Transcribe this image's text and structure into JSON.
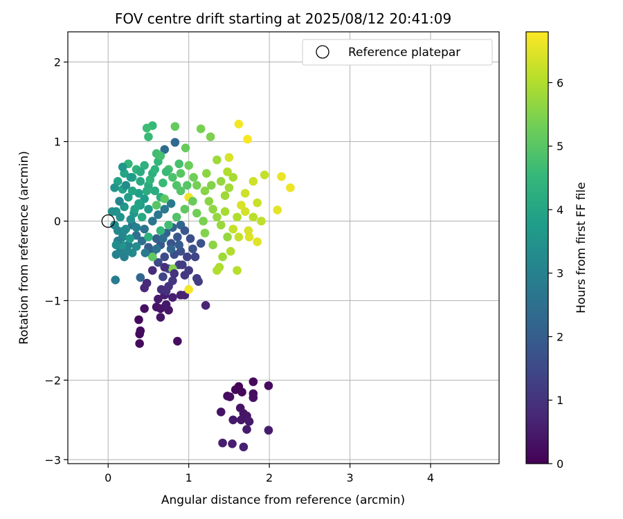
{
  "chart_data": {
    "type": "scatter",
    "title": "FOV centre drift starting at 2025/08/12 20:41:09",
    "xlabel": "Angular distance from reference (arcmin)",
    "ylabel": "Rotation from reference (arcmin)",
    "xlim": [
      -0.5,
      4.85
    ],
    "ylim": [
      -3.05,
      2.38
    ],
    "x_ticks": [
      0,
      1,
      2,
      3,
      4
    ],
    "y_ticks": [
      -3,
      -2,
      -1,
      0,
      1,
      2
    ],
    "grid": true,
    "legend": {
      "placement": "top-right",
      "entries": [
        "Reference platepar"
      ]
    },
    "reference_point": {
      "x": 0.0,
      "y": 0.0
    },
    "colorbar": {
      "label": "Hours from first FF file",
      "range": [
        0,
        6.8
      ],
      "ticks": [
        0,
        1,
        2,
        3,
        4,
        5,
        6
      ],
      "colormap": "viridis",
      "stops": [
        "#440154",
        "#482878",
        "#3e4a89",
        "#31688e",
        "#26828e",
        "#1f9e89",
        "#35b779",
        "#6ece58",
        "#b5de2b",
        "#fde725"
      ]
    },
    "points": [
      {
        "x": 1.62,
        "y": -2.08,
        "t": 0.05
      },
      {
        "x": 1.58,
        "y": -2.12,
        "t": 0.1
      },
      {
        "x": 1.66,
        "y": -2.15,
        "t": 0.12
      },
      {
        "x": 1.8,
        "y": -2.02,
        "t": 0.15
      },
      {
        "x": 1.99,
        "y": -2.07,
        "t": 0.2
      },
      {
        "x": 1.48,
        "y": -2.2,
        "t": 0.22
      },
      {
        "x": 1.51,
        "y": -2.21,
        "t": 0.25
      },
      {
        "x": 1.8,
        "y": -2.17,
        "t": 0.28
      },
      {
        "x": 1.8,
        "y": -2.22,
        "t": 0.3
      },
      {
        "x": 1.64,
        "y": -2.35,
        "t": 0.32
      },
      {
        "x": 1.4,
        "y": -2.4,
        "t": 0.35
      },
      {
        "x": 1.68,
        "y": -2.42,
        "t": 0.38
      },
      {
        "x": 1.72,
        "y": -2.45,
        "t": 0.4
      },
      {
        "x": 1.65,
        "y": -2.5,
        "t": 0.42
      },
      {
        "x": 1.55,
        "y": -2.5,
        "t": 0.45
      },
      {
        "x": 1.75,
        "y": -2.52,
        "t": 0.47
      },
      {
        "x": 1.72,
        "y": -2.62,
        "t": 0.5
      },
      {
        "x": 1.99,
        "y": -2.63,
        "t": 0.52
      },
      {
        "x": 1.42,
        "y": -2.79,
        "t": 0.55
      },
      {
        "x": 1.54,
        "y": -2.8,
        "t": 0.57
      },
      {
        "x": 1.68,
        "y": -2.84,
        "t": 0.6
      },
      {
        "x": 0.38,
        "y": -1.24,
        "t": 0.15
      },
      {
        "x": 0.39,
        "y": -1.42,
        "t": 0.18
      },
      {
        "x": 0.4,
        "y": -1.38,
        "t": 0.2
      },
      {
        "x": 0.39,
        "y": -1.54,
        "t": 0.22
      },
      {
        "x": 0.86,
        "y": -1.51,
        "t": 0.25
      },
      {
        "x": 0.45,
        "y": -1.1,
        "t": 0.3
      },
      {
        "x": 0.6,
        "y": -1.08,
        "t": 0.35
      },
      {
        "x": 0.65,
        "y": -1.1,
        "t": 0.38
      },
      {
        "x": 0.65,
        "y": -1.21,
        "t": 0.4
      },
      {
        "x": 0.75,
        "y": -1.12,
        "t": 0.42
      },
      {
        "x": 0.72,
        "y": -1.05,
        "t": 0.45
      },
      {
        "x": 0.62,
        "y": -0.98,
        "t": 0.5
      },
      {
        "x": 0.7,
        "y": -0.93,
        "t": 0.55
      },
      {
        "x": 0.8,
        "y": -0.96,
        "t": 0.6
      },
      {
        "x": 0.9,
        "y": -0.93,
        "t": 0.62
      },
      {
        "x": 0.95,
        "y": -0.93,
        "t": 0.65
      },
      {
        "x": 1.21,
        "y": -1.06,
        "t": 0.7
      },
      {
        "x": 0.45,
        "y": -0.84,
        "t": 0.75
      },
      {
        "x": 0.48,
        "y": -0.78,
        "t": 0.8
      },
      {
        "x": 0.55,
        "y": -0.62,
        "t": 0.85
      },
      {
        "x": 0.66,
        "y": -0.86,
        "t": 0.9
      },
      {
        "x": 0.72,
        "y": -0.88,
        "t": 0.95
      },
      {
        "x": 0.75,
        "y": -0.82,
        "t": 1.0
      },
      {
        "x": 0.8,
        "y": -0.75,
        "t": 1.05
      },
      {
        "x": 0.95,
        "y": -0.68,
        "t": 1.1
      },
      {
        "x": 1.0,
        "y": -0.62,
        "t": 1.15
      },
      {
        "x": 1.1,
        "y": -0.72,
        "t": 1.2
      },
      {
        "x": 1.12,
        "y": -0.76,
        "t": 1.25
      },
      {
        "x": 0.88,
        "y": -0.55,
        "t": 1.3
      },
      {
        "x": 0.98,
        "y": -0.45,
        "t": 1.35
      },
      {
        "x": 0.68,
        "y": -0.7,
        "t": 1.4
      },
      {
        "x": 0.75,
        "y": -0.6,
        "t": 1.45
      },
      {
        "x": 0.62,
        "y": -0.52,
        "t": 1.5
      },
      {
        "x": 0.7,
        "y": -0.45,
        "t": 1.55
      },
      {
        "x": 0.82,
        "y": -0.42,
        "t": 1.6
      },
      {
        "x": 0.9,
        "y": -0.38,
        "t": 1.65
      },
      {
        "x": 1.05,
        "y": -0.35,
        "t": 1.7
      },
      {
        "x": 1.15,
        "y": -0.28,
        "t": 1.75
      },
      {
        "x": 0.78,
        "y": -0.28,
        "t": 1.8
      },
      {
        "x": 0.86,
        "y": -0.2,
        "t": 1.85
      },
      {
        "x": 0.65,
        "y": -0.3,
        "t": 1.9
      },
      {
        "x": 0.55,
        "y": -0.4,
        "t": 1.95
      },
      {
        "x": 0.5,
        "y": -0.33,
        "t": 2.0
      },
      {
        "x": 0.6,
        "y": -0.22,
        "t": 2.05
      },
      {
        "x": 0.72,
        "y": -0.15,
        "t": 2.1
      },
      {
        "x": 0.8,
        "y": -0.08,
        "t": 2.15
      },
      {
        "x": 0.9,
        "y": -0.05,
        "t": 2.2
      },
      {
        "x": 0.4,
        "y": -0.71,
        "t": 2.25
      },
      {
        "x": 0.83,
        "y": 0.99,
        "t": 2.3
      },
      {
        "x": 0.7,
        "y": 0.9,
        "t": 2.4
      },
      {
        "x": 0.42,
        "y": -0.25,
        "t": 2.45
      },
      {
        "x": 0.35,
        "y": -0.18,
        "t": 2.5
      },
      {
        "x": 0.45,
        "y": -0.1,
        "t": 2.55
      },
      {
        "x": 0.3,
        "y": -0.05,
        "t": 2.6
      },
      {
        "x": 0.55,
        "y": 0.0,
        "t": 2.65
      },
      {
        "x": 0.62,
        "y": 0.08,
        "t": 2.7
      },
      {
        "x": 0.7,
        "y": 0.15,
        "t": 2.75
      },
      {
        "x": 0.78,
        "y": 0.22,
        "t": 2.8
      },
      {
        "x": 0.09,
        "y": -0.74,
        "t": 2.85
      },
      {
        "x": 0.2,
        "y": -0.45,
        "t": 2.9
      },
      {
        "x": 0.15,
        "y": -0.38,
        "t": 2.95
      },
      {
        "x": 0.25,
        "y": -0.3,
        "t": 3.0
      },
      {
        "x": 0.1,
        "y": -0.42,
        "t": 3.05
      },
      {
        "x": 0.18,
        "y": -0.2,
        "t": 3.1
      },
      {
        "x": 0.12,
        "y": -0.12,
        "t": 3.15
      },
      {
        "x": 0.08,
        "y": -0.05,
        "t": 3.2
      },
      {
        "x": 0.3,
        "y": -0.4,
        "t": 3.25
      },
      {
        "x": 0.35,
        "y": -0.32,
        "t": 3.3
      },
      {
        "x": 0.22,
        "y": -0.1,
        "t": 3.35
      },
      {
        "x": 0.28,
        "y": 0.02,
        "t": 3.4
      },
      {
        "x": 0.15,
        "y": 0.05,
        "t": 3.45
      },
      {
        "x": 0.1,
        "y": 0.12,
        "t": 3.5
      },
      {
        "x": 0.2,
        "y": 0.18,
        "t": 3.55
      },
      {
        "x": 0.32,
        "y": 0.1,
        "t": 3.6
      },
      {
        "x": 0.4,
        "y": 0.2,
        "t": 3.65
      },
      {
        "x": 0.5,
        "y": 0.15,
        "t": 3.7
      },
      {
        "x": 0.45,
        "y": 0.28,
        "t": 3.75
      },
      {
        "x": 0.38,
        "y": 0.35,
        "t": 3.8
      },
      {
        "x": 0.25,
        "y": 0.3,
        "t": 3.85
      },
      {
        "x": 0.18,
        "y": 0.4,
        "t": 3.9
      },
      {
        "x": 0.12,
        "y": 0.5,
        "t": 3.95
      },
      {
        "x": 0.2,
        "y": 0.6,
        "t": 4.0
      },
      {
        "x": 0.3,
        "y": 0.55,
        "t": 4.05
      },
      {
        "x": 0.4,
        "y": 0.5,
        "t": 4.1
      },
      {
        "x": 0.5,
        "y": 0.45,
        "t": 4.15
      },
      {
        "x": 0.58,
        "y": 0.38,
        "t": 4.2
      },
      {
        "x": 0.65,
        "y": 0.3,
        "t": 4.25
      },
      {
        "x": 0.55,
        "y": 0.6,
        "t": 4.3
      },
      {
        "x": 0.45,
        "y": 0.7,
        "t": 4.35
      },
      {
        "x": 0.35,
        "y": 0.65,
        "t": 4.4
      },
      {
        "x": 0.25,
        "y": 0.72,
        "t": 4.45
      },
      {
        "x": 0.62,
        "y": 0.75,
        "t": 4.5
      },
      {
        "x": 0.55,
        "y": 1.2,
        "t": 4.55
      },
      {
        "x": 0.5,
        "y": 1.06,
        "t": 4.6
      },
      {
        "x": 0.48,
        "y": 1.17,
        "t": 4.65
      },
      {
        "x": 0.6,
        "y": 0.85,
        "t": 4.7
      },
      {
        "x": 0.65,
        "y": 0.82,
        "t": 4.75
      },
      {
        "x": 0.75,
        "y": 0.65,
        "t": 4.8
      },
      {
        "x": 0.8,
        "y": 0.55,
        "t": 4.85
      },
      {
        "x": 0.85,
        "y": 0.45,
        "t": 4.9
      },
      {
        "x": 0.9,
        "y": 0.38,
        "t": 4.95
      },
      {
        "x": 0.6,
        "y": 0.2,
        "t": 5.0
      },
      {
        "x": 0.7,
        "y": 0.28,
        "t": 5.05
      },
      {
        "x": 0.55,
        "y": -0.45,
        "t": 5.1
      },
      {
        "x": 0.83,
        "y": 1.19,
        "t": 5.15
      },
      {
        "x": 0.96,
        "y": 0.92,
        "t": 5.2
      },
      {
        "x": 1.0,
        "y": 0.7,
        "t": 5.25
      },
      {
        "x": 1.06,
        "y": 0.55,
        "t": 5.3
      },
      {
        "x": 1.1,
        "y": 0.45,
        "t": 5.35
      },
      {
        "x": 1.15,
        "y": 1.16,
        "t": 5.4
      },
      {
        "x": 1.27,
        "y": 1.06,
        "t": 5.45
      },
      {
        "x": 0.8,
        "y": -0.6,
        "t": 5.5
      },
      {
        "x": 1.2,
        "y": 0.38,
        "t": 5.55
      },
      {
        "x": 1.25,
        "y": 0.25,
        "t": 5.6
      },
      {
        "x": 1.3,
        "y": 0.15,
        "t": 5.65
      },
      {
        "x": 1.35,
        "y": 0.05,
        "t": 5.7
      },
      {
        "x": 1.4,
        "y": -0.05,
        "t": 5.75
      },
      {
        "x": 1.45,
        "y": 0.32,
        "t": 5.8
      },
      {
        "x": 1.5,
        "y": 0.42,
        "t": 5.85
      },
      {
        "x": 1.55,
        "y": 0.55,
        "t": 5.9
      },
      {
        "x": 1.38,
        "y": -0.58,
        "t": 5.95
      },
      {
        "x": 1.35,
        "y": -0.62,
        "t": 6.0
      },
      {
        "x": 1.6,
        "y": -0.62,
        "t": 6.05
      },
      {
        "x": 1.8,
        "y": 0.05,
        "t": 6.1
      },
      {
        "x": 1.9,
        "y": 0.0,
        "t": 6.15
      },
      {
        "x": 1.94,
        "y": 0.58,
        "t": 6.2
      },
      {
        "x": 1.85,
        "y": 0.23,
        "t": 6.25
      },
      {
        "x": 1.8,
        "y": 0.5,
        "t": 6.3
      },
      {
        "x": 1.7,
        "y": 0.12,
        "t": 6.35
      },
      {
        "x": 1.65,
        "y": 0.2,
        "t": 6.4
      },
      {
        "x": 1.75,
        "y": -0.2,
        "t": 6.45
      },
      {
        "x": 1.85,
        "y": -0.26,
        "t": 6.5
      },
      {
        "x": 2.1,
        "y": 0.14,
        "t": 6.55
      },
      {
        "x": 2.15,
        "y": 0.56,
        "t": 6.6
      },
      {
        "x": 2.26,
        "y": 0.42,
        "t": 6.65
      },
      {
        "x": 1.62,
        "y": 1.22,
        "t": 6.7
      },
      {
        "x": 1.73,
        "y": 1.03,
        "t": 6.75
      },
      {
        "x": 1.0,
        "y": -0.86,
        "t": 6.7
      },
      {
        "x": 1.0,
        "y": 0.3,
        "t": 6.6
      },
      {
        "x": 1.55,
        "y": -0.1,
        "t": 6.2
      },
      {
        "x": 1.6,
        "y": 0.05,
        "t": 6.0
      },
      {
        "x": 1.45,
        "y": 0.12,
        "t": 5.9
      },
      {
        "x": 1.7,
        "y": 0.35,
        "t": 6.3
      },
      {
        "x": 1.48,
        "y": -0.2,
        "t": 5.7
      },
      {
        "x": 1.2,
        "y": -0.15,
        "t": 5.5
      },
      {
        "x": 1.1,
        "y": 0.1,
        "t": 5.3
      },
      {
        "x": 0.95,
        "y": 0.15,
        "t": 5.1
      },
      {
        "x": 0.85,
        "y": 0.05,
        "t": 4.9
      },
      {
        "x": 0.75,
        "y": -0.05,
        "t": 4.7
      },
      {
        "x": 0.65,
        "y": -0.12,
        "t": 4.5
      },
      {
        "x": 0.5,
        "y": -0.2,
        "t": 4.3
      },
      {
        "x": 0.42,
        "y": 0.05,
        "t": 4.1
      },
      {
        "x": 0.33,
        "y": 0.15,
        "t": 3.9
      },
      {
        "x": 0.27,
        "y": -0.22,
        "t": 3.7
      },
      {
        "x": 0.17,
        "y": -0.3,
        "t": 3.5
      },
      {
        "x": 0.22,
        "y": 0.45,
        "t": 3.3
      },
      {
        "x": 0.14,
        "y": 0.25,
        "t": 3.1
      },
      {
        "x": 0.05,
        "y": 0.12,
        "t": 3.4
      },
      {
        "x": 0.12,
        "y": -0.25,
        "t": 2.9
      },
      {
        "x": 0.24,
        "y": -0.38,
        "t": 3.1
      },
      {
        "x": 0.3,
        "y": 0.38,
        "t": 4.0
      },
      {
        "x": 0.4,
        "y": 0.62,
        "t": 4.2
      },
      {
        "x": 0.52,
        "y": 0.52,
        "t": 4.4
      },
      {
        "x": 0.68,
        "y": 0.48,
        "t": 4.6
      },
      {
        "x": 0.9,
        "y": 0.6,
        "t": 5.0
      },
      {
        "x": 1.05,
        "y": 0.25,
        "t": 5.2
      },
      {
        "x": 1.18,
        "y": 0.0,
        "t": 5.4
      },
      {
        "x": 1.3,
        "y": -0.3,
        "t": 5.6
      },
      {
        "x": 1.42,
        "y": -0.45,
        "t": 5.8
      },
      {
        "x": 1.52,
        "y": -0.38,
        "t": 6.0
      },
      {
        "x": 1.62,
        "y": -0.2,
        "t": 6.2
      },
      {
        "x": 1.74,
        "y": -0.12,
        "t": 6.4
      },
      {
        "x": 1.22,
        "y": 0.6,
        "t": 5.6
      },
      {
        "x": 1.35,
        "y": 0.77,
        "t": 5.8
      },
      {
        "x": 1.48,
        "y": 0.62,
        "t": 6.0
      },
      {
        "x": 1.5,
        "y": 0.8,
        "t": 6.4
      },
      {
        "x": 1.4,
        "y": 0.5,
        "t": 5.7
      },
      {
        "x": 1.28,
        "y": 0.45,
        "t": 5.5
      },
      {
        "x": 0.98,
        "y": 0.45,
        "t": 5.0
      },
      {
        "x": 0.88,
        "y": 0.72,
        "t": 4.8
      },
      {
        "x": 0.72,
        "y": 0.62,
        "t": 4.6
      },
      {
        "x": 0.58,
        "y": 0.65,
        "t": 4.4
      },
      {
        "x": 0.48,
        "y": 0.38,
        "t": 4.2
      },
      {
        "x": 0.38,
        "y": 0.22,
        "t": 3.9
      },
      {
        "x": 0.28,
        "y": 0.55,
        "t": 3.7
      },
      {
        "x": 0.18,
        "y": 0.68,
        "t": 3.6
      },
      {
        "x": 0.08,
        "y": 0.42,
        "t": 3.5
      },
      {
        "x": 0.1,
        "y": -0.3,
        "t": 3.3
      },
      {
        "x": 0.2,
        "y": -0.12,
        "t": 3.2
      },
      {
        "x": 0.35,
        "y": -0.08,
        "t": 3.0
      },
      {
        "x": 0.46,
        "y": -0.4,
        "t": 2.8
      },
      {
        "x": 0.6,
        "y": -0.35,
        "t": 2.6
      },
      {
        "x": 0.68,
        "y": -0.22,
        "t": 2.4
      },
      {
        "x": 0.78,
        "y": -0.35,
        "t": 2.2
      },
      {
        "x": 0.88,
        "y": -0.3,
        "t": 2.0
      },
      {
        "x": 0.95,
        "y": -0.12,
        "t": 1.8
      },
      {
        "x": 1.02,
        "y": -0.22,
        "t": 1.6
      },
      {
        "x": 1.08,
        "y": -0.45,
        "t": 1.4
      },
      {
        "x": 0.92,
        "y": -0.55,
        "t": 1.2
      },
      {
        "x": 0.82,
        "y": -0.66,
        "t": 1.0
      },
      {
        "x": 0.7,
        "y": -0.58,
        "t": 0.9
      }
    ]
  }
}
